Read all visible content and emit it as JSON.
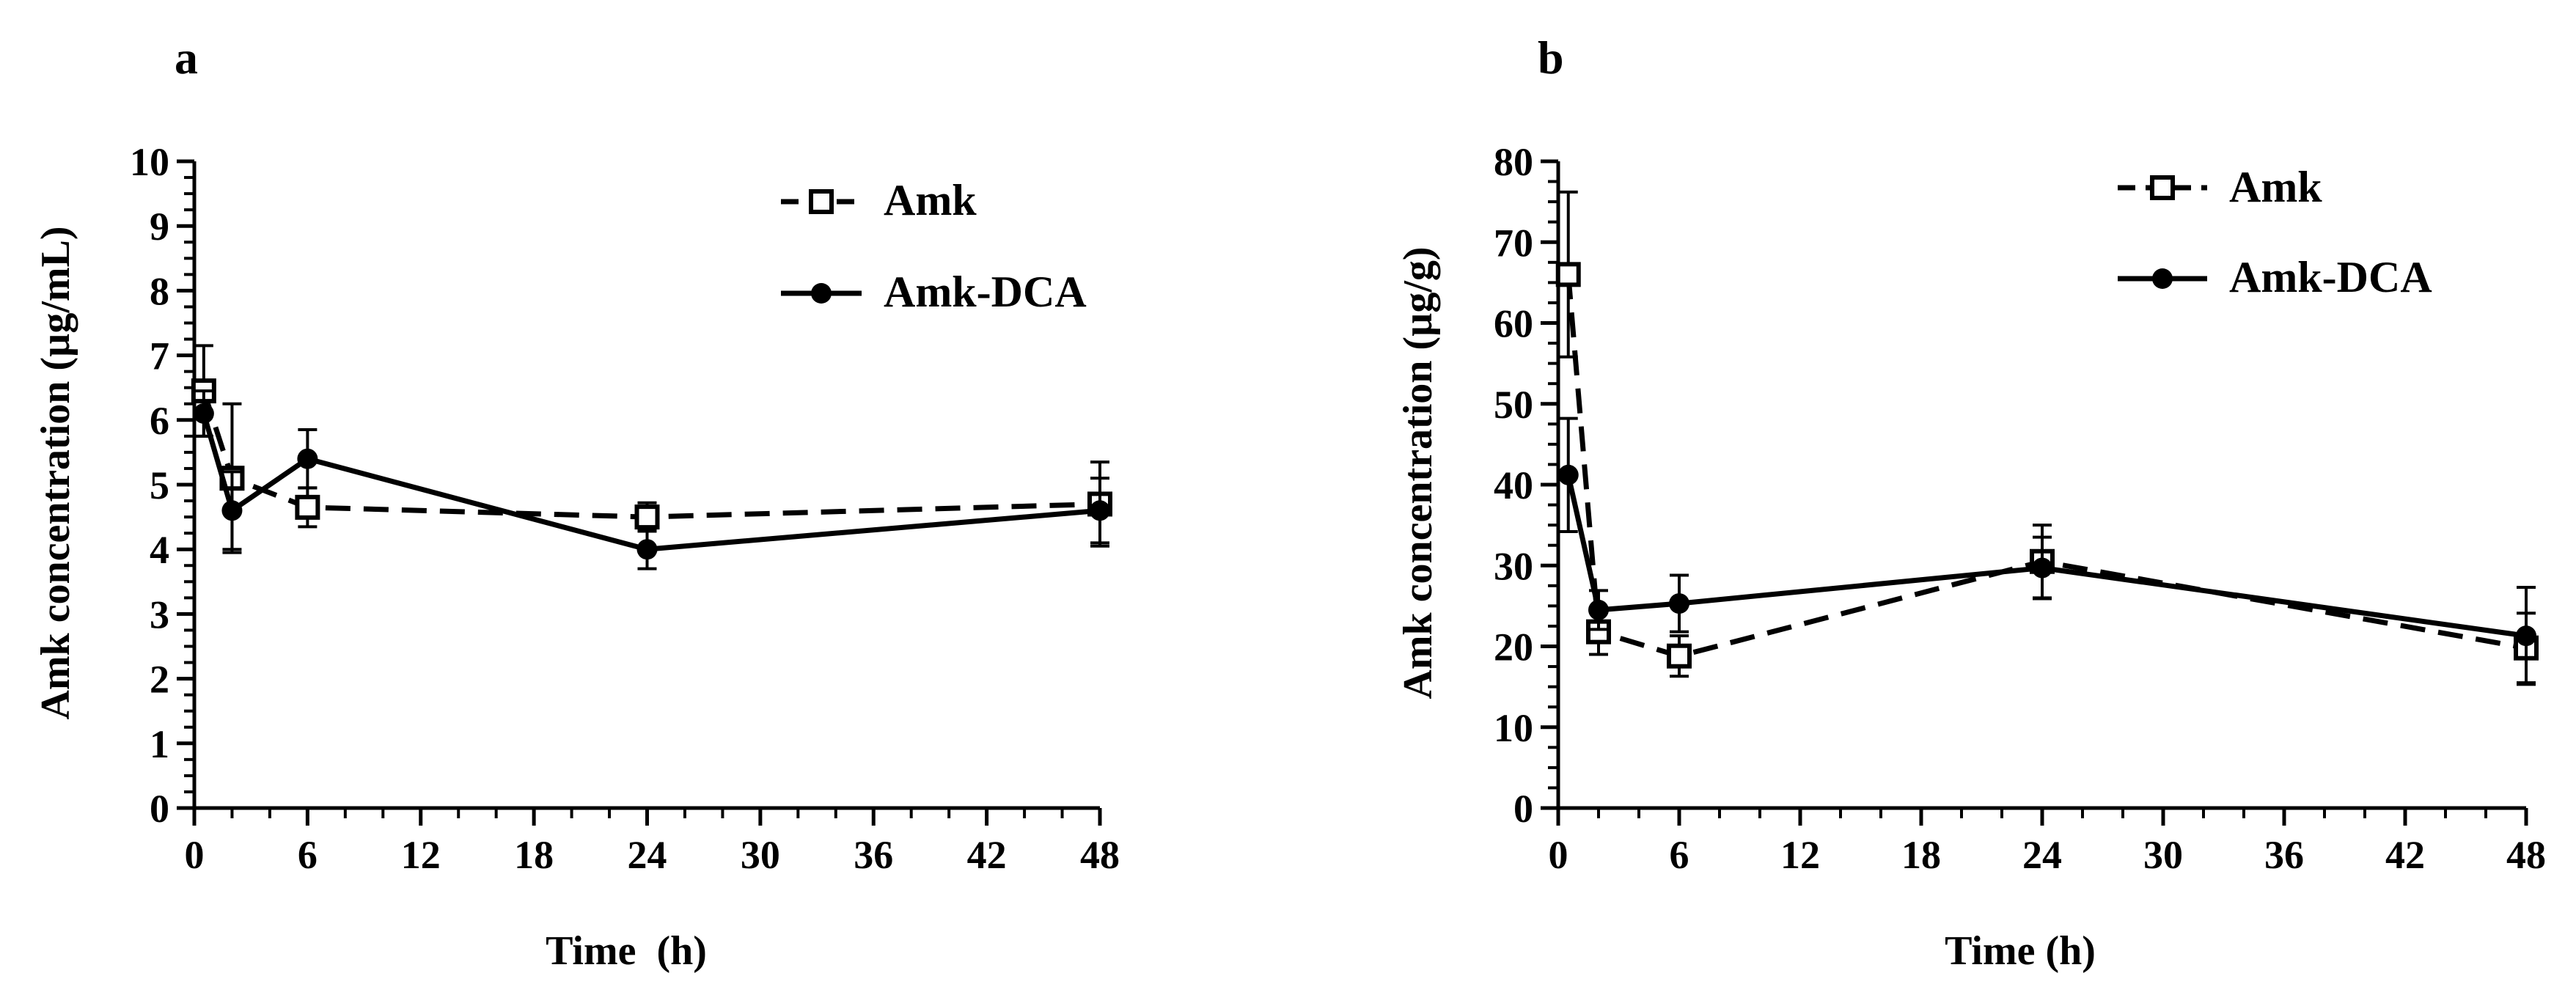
{
  "chart_data": [
    {
      "type": "line",
      "panel_label": "a",
      "xlabel": "Time  (h)",
      "ylabel": "Amk concentration (µg/mL)",
      "xlim": [
        0,
        48
      ],
      "ylim": [
        0,
        10
      ],
      "x_ticks": [
        0,
        6,
        12,
        18,
        24,
        30,
        36,
        42,
        48
      ],
      "y_ticks": [
        0,
        1,
        2,
        3,
        4,
        5,
        6,
        7,
        8,
        9,
        10
      ],
      "legend_position": "top-right",
      "series": [
        {
          "name": "Amk",
          "line_style": "dashed",
          "marker": "open-square",
          "x": [
            0.5,
            2,
            6,
            24,
            48
          ],
          "y": [
            6.45,
            5.1,
            4.65,
            4.5,
            4.7
          ],
          "error": [
            0.7,
            1.15,
            0.3,
            0.22,
            0.65
          ]
        },
        {
          "name": "Amk-DCA",
          "line_style": "solid",
          "marker": "filled-circle",
          "x": [
            0.5,
            2,
            6,
            24,
            48
          ],
          "y": [
            6.1,
            4.6,
            5.4,
            4.0,
            4.6
          ],
          "error": [
            0.35,
            0.6,
            0.45,
            0.3,
            0.5
          ]
        }
      ]
    },
    {
      "type": "line",
      "panel_label": "b",
      "xlabel": "Time (h)",
      "ylabel": "Amk concentration (µg/g)",
      "xlim": [
        0,
        48
      ],
      "ylim": [
        0,
        80
      ],
      "x_ticks": [
        0,
        6,
        12,
        18,
        24,
        30,
        36,
        42,
        48
      ],
      "y_ticks": [
        0,
        10,
        20,
        30,
        40,
        50,
        60,
        70,
        80
      ],
      "legend_position": "top-right",
      "series": [
        {
          "name": "Amk",
          "line_style": "dashed",
          "marker": "open-square",
          "x": [
            0.5,
            2,
            6,
            24,
            48
          ],
          "y": [
            66,
            21.8,
            18.8,
            30.5,
            19.8
          ],
          "error": [
            10.2,
            2.8,
            2.5,
            4.5,
            4.3
          ]
        },
        {
          "name": "Amk-DCA",
          "line_style": "solid",
          "marker": "filled-circle",
          "x": [
            0.5,
            2,
            6,
            24,
            48
          ],
          "y": [
            41.2,
            24.5,
            25.3,
            29.7,
            21.3
          ],
          "error": [
            7.0,
            2.4,
            3.5,
            3.8,
            6.0
          ]
        }
      ]
    }
  ]
}
